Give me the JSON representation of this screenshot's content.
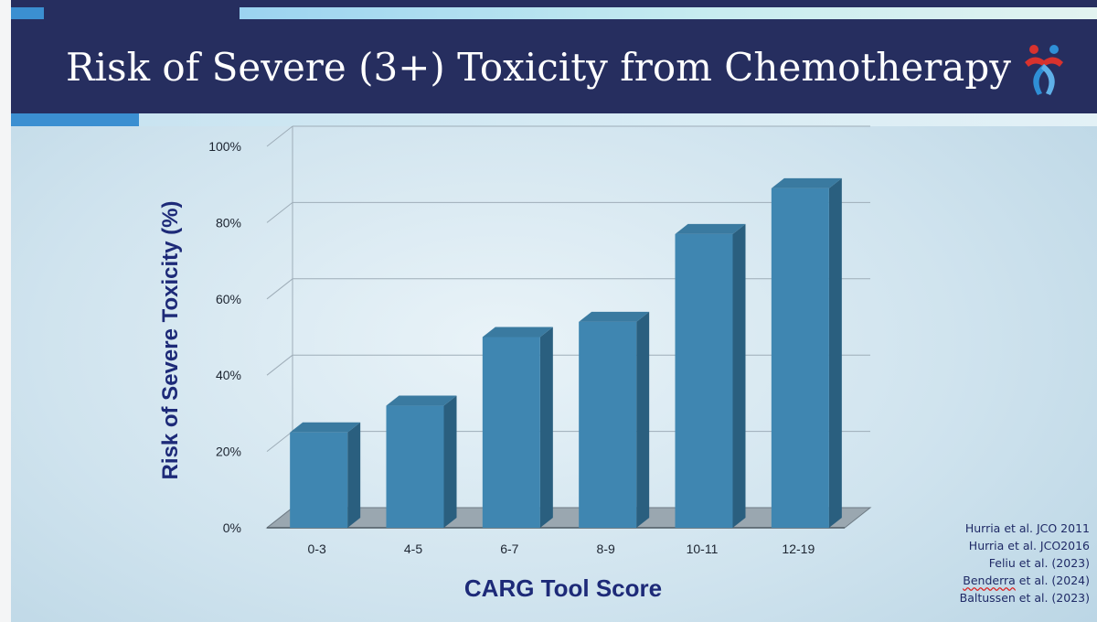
{
  "slide": {
    "title": "Risk of Severe (3+) Toxicity from Chemotherapy"
  },
  "colors": {
    "header_bg": "#262e5f",
    "bar_front": "#3f86b1",
    "bar_side": "#2a5f7f",
    "bar_top": "#3a7aa0",
    "axis_title": "#1d2a78"
  },
  "logo": {
    "icon": "ribbon-people-logo-icon"
  },
  "chart_data": {
    "type": "bar",
    "style": "3d",
    "categories": [
      "0-3",
      "4-5",
      "6-7",
      "8-9",
      "10-11",
      "12-19"
    ],
    "values": [
      25,
      32,
      50,
      54,
      77,
      89
    ],
    "xlabel": "CARG Tool Score",
    "ylabel": "Risk of Severe Toxicity (%)",
    "ylim": [
      0,
      100
    ],
    "yticks": [
      "0%",
      "20%",
      "40%",
      "60%",
      "80%",
      "100%"
    ],
    "grid": true,
    "legend": "none"
  },
  "references": [
    {
      "text": "Hurria et al.  JCO 2011"
    },
    {
      "text": "Hurria et al.  JCO2016"
    },
    {
      "text": "Feliu et al. (2023)"
    },
    {
      "text": "Benderra et al. (2024)",
      "spellcheck_word": "Benderra",
      "rest": " et al. (2024)"
    },
    {
      "text": "Baltussen et al. (2023)"
    }
  ]
}
